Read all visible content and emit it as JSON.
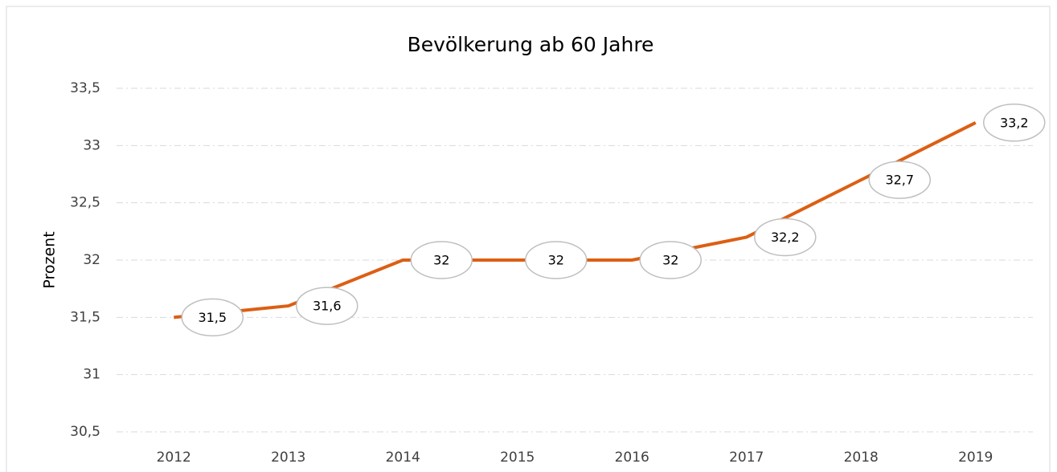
{
  "chart_data": {
    "type": "line",
    "title": "Bevölkerung ab 60 Jahre",
    "y_label": "Prozent",
    "categories": [
      "2012",
      "2013",
      "2014",
      "2015",
      "2016",
      "2017",
      "2018",
      "2019"
    ],
    "series": [
      {
        "name": "Bevölkerung ab 60 Jahre",
        "color": "#dc5f14",
        "values": [
          31.5,
          31.6,
          32,
          32,
          32,
          32.2,
          32.7,
          33.2
        ],
        "value_labels": [
          "31,5",
          "31,6",
          "32",
          "32",
          "32",
          "32,2",
          "32,7",
          "33,2"
        ]
      }
    ],
    "ylim": [
      30.5,
      33.5
    ],
    "yticks": [
      {
        "value": 30.5,
        "label": "30,5"
      },
      31,
      {
        "value": 31.5,
        "label": "31,5"
      },
      32,
      {
        "value": 32.5,
        "label": "32,5"
      },
      33,
      {
        "value": 33.5,
        "label": "33,5"
      }
    ],
    "grid": true
  }
}
